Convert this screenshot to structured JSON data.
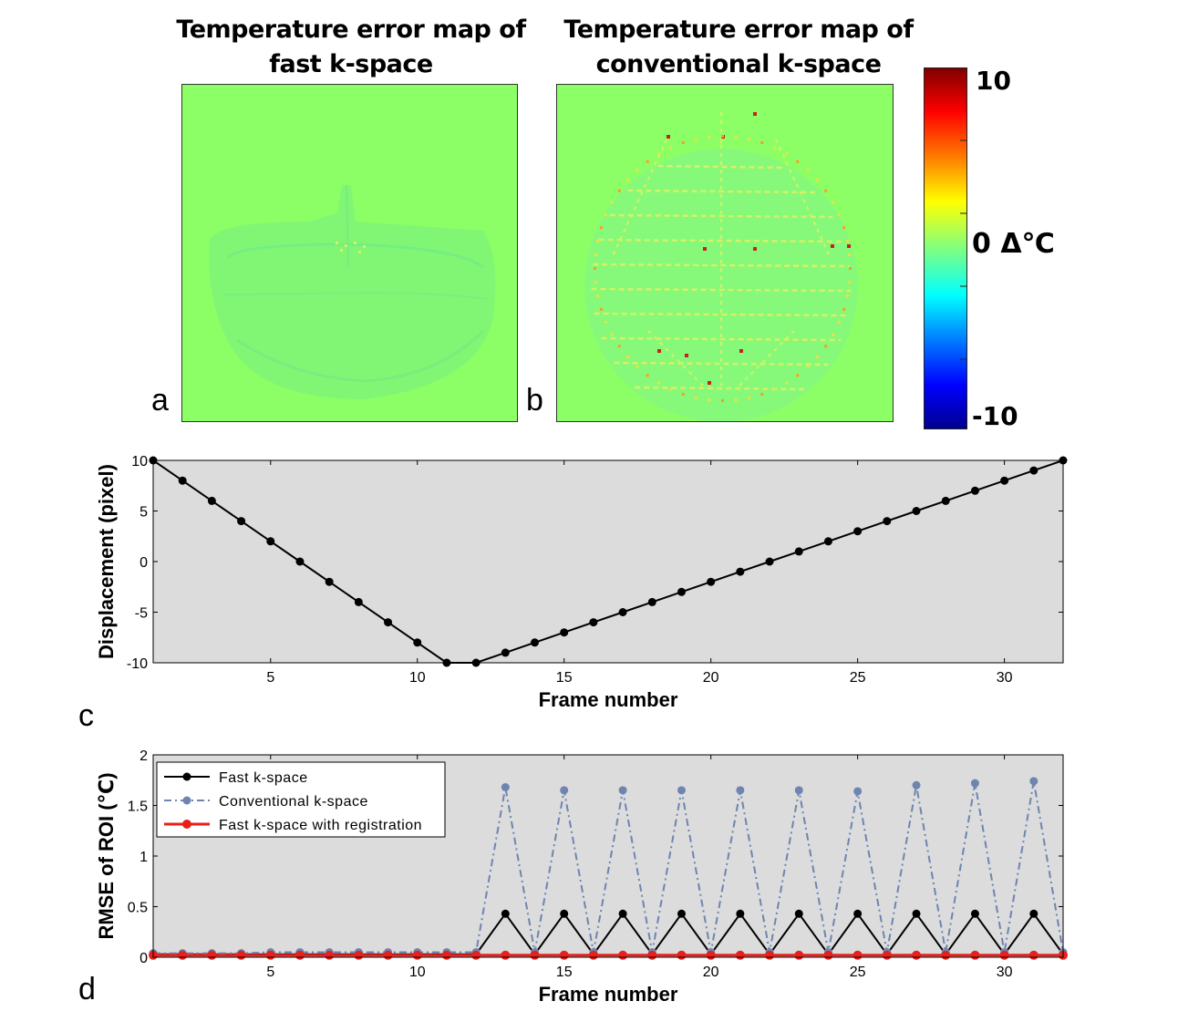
{
  "maps": [
    {
      "title_line1": "Temperature error map of",
      "title_line2": "fast k-space",
      "letter": "a"
    },
    {
      "title_line1": "Temperature error map of",
      "title_line2": "conventional k-space",
      "letter": "b"
    }
  ],
  "colorbar": {
    "max_label": "10",
    "mid_label": "0 Δ℃",
    "min_label": "-10"
  },
  "panel_c_letter": "c",
  "panel_d_letter": "d",
  "colors": {
    "plot_bg": "#dcdcdc",
    "fast": "#000000",
    "conventional": "#6e85b0",
    "registered": "#e8201c",
    "map_bg": "#8cff66"
  },
  "chart_data": [
    {
      "type": "line",
      "title": "",
      "xlabel": "Frame number",
      "ylabel": "Displacement (pixel)",
      "xlim": [
        1,
        32
      ],
      "ylim": [
        -10,
        10
      ],
      "xticks": [
        5,
        10,
        15,
        20,
        25,
        30
      ],
      "yticks": [
        -10,
        -5,
        0,
        5,
        10
      ],
      "series": [
        {
          "name": "Displacement",
          "x": [
            1,
            2,
            3,
            4,
            5,
            6,
            7,
            8,
            9,
            10,
            11,
            12,
            13,
            14,
            15,
            16,
            17,
            18,
            19,
            20,
            21,
            22,
            23,
            24,
            25,
            26,
            27,
            28,
            29,
            30,
            31,
            32
          ],
          "y": [
            10,
            8,
            6,
            4,
            2,
            0,
            -2,
            -4,
            -6,
            -8,
            -10,
            -10,
            -9,
            -8,
            -7,
            -6,
            -5,
            -4,
            -3,
            -2,
            -1,
            0,
            1,
            2,
            3,
            4,
            5,
            6,
            7,
            8,
            9,
            10
          ]
        }
      ]
    },
    {
      "type": "line",
      "title": "",
      "xlabel": "Frame number",
      "ylabel": "RMSE of ROI (℃)",
      "xlim": [
        1,
        32
      ],
      "ylim": [
        0,
        2
      ],
      "xticks": [
        5,
        10,
        15,
        20,
        25,
        30
      ],
      "yticks": [
        0,
        0.5,
        1,
        1.5,
        2
      ],
      "legend_position": "top-left",
      "series": [
        {
          "name": "Fast k-space",
          "x": [
            1,
            2,
            3,
            4,
            5,
            6,
            7,
            8,
            9,
            10,
            11,
            12,
            13,
            14,
            15,
            16,
            17,
            18,
            19,
            20,
            21,
            22,
            23,
            24,
            25,
            26,
            27,
            28,
            29,
            30,
            31,
            32
          ],
          "y": [
            0.03,
            0.03,
            0.03,
            0.03,
            0.03,
            0.03,
            0.03,
            0.03,
            0.03,
            0.03,
            0.03,
            0.03,
            0.43,
            0.03,
            0.43,
            0.03,
            0.43,
            0.03,
            0.43,
            0.03,
            0.43,
            0.03,
            0.43,
            0.03,
            0.43,
            0.03,
            0.43,
            0.03,
            0.43,
            0.03,
            0.43,
            0.03
          ]
        },
        {
          "name": "Conventional k-space",
          "x": [
            1,
            2,
            3,
            4,
            5,
            6,
            7,
            8,
            9,
            10,
            11,
            12,
            13,
            14,
            15,
            16,
            17,
            18,
            19,
            20,
            21,
            22,
            23,
            24,
            25,
            26,
            27,
            28,
            29,
            30,
            31,
            32
          ],
          "y": [
            0.04,
            0.04,
            0.04,
            0.04,
            0.05,
            0.05,
            0.05,
            0.05,
            0.05,
            0.05,
            0.05,
            0.05,
            1.68,
            0.05,
            1.65,
            0.05,
            1.65,
            0.05,
            1.65,
            0.05,
            1.65,
            0.05,
            1.65,
            0.05,
            1.64,
            0.05,
            1.7,
            0.05,
            1.72,
            0.05,
            1.74,
            0.05
          ]
        },
        {
          "name": "Fast k-space with registration",
          "x": [
            1,
            2,
            3,
            4,
            5,
            6,
            7,
            8,
            9,
            10,
            11,
            12,
            13,
            14,
            15,
            16,
            17,
            18,
            19,
            20,
            21,
            22,
            23,
            24,
            25,
            26,
            27,
            28,
            29,
            30,
            31,
            32
          ],
          "y": [
            0.02,
            0.02,
            0.02,
            0.02,
            0.02,
            0.02,
            0.02,
            0.02,
            0.02,
            0.02,
            0.02,
            0.02,
            0.02,
            0.02,
            0.02,
            0.02,
            0.02,
            0.02,
            0.02,
            0.02,
            0.02,
            0.02,
            0.02,
            0.02,
            0.02,
            0.02,
            0.02,
            0.02,
            0.02,
            0.02,
            0.02,
            0.02
          ]
        }
      ]
    }
  ]
}
